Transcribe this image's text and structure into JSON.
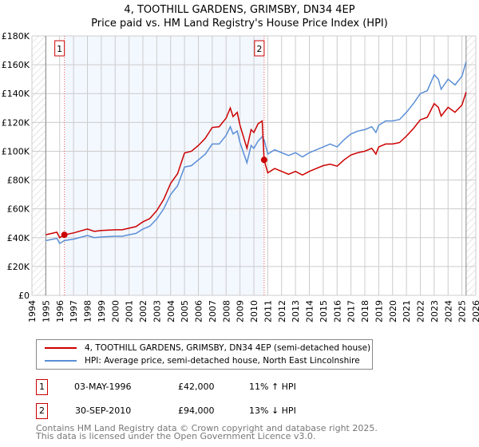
{
  "chart_data": {
    "type": "line",
    "title": "4, TOOTHILL GARDENS, GRIMSBY, DN34 4EP",
    "subtitle": "Price paid vs. HM Land Registry's House Price Index (HPI)",
    "xlim": [
      1994,
      2026
    ],
    "ylim": [
      0,
      180000
    ],
    "x_ticks": [
      "1994",
      "1995",
      "1996",
      "1997",
      "1998",
      "1999",
      "2000",
      "2001",
      "2002",
      "2003",
      "2004",
      "2005",
      "2006",
      "2007",
      "2008",
      "2009",
      "2010",
      "2011",
      "2012",
      "2013",
      "2014",
      "2015",
      "2016",
      "2017",
      "2018",
      "2019",
      "2020",
      "2021",
      "2022",
      "2023",
      "2024",
      "2025",
      "2026"
    ],
    "y_ticks": [
      {
        "v": 0,
        "label": "£0"
      },
      {
        "v": 20000,
        "label": "£20K"
      },
      {
        "v": 40000,
        "label": "£40K"
      },
      {
        "v": 60000,
        "label": "£60K"
      },
      {
        "v": 80000,
        "label": "£80K"
      },
      {
        "v": 100000,
        "label": "£100K"
      },
      {
        "v": 120000,
        "label": "£120K"
      },
      {
        "v": 140000,
        "label": "£140K"
      },
      {
        "v": 160000,
        "label": "£160K"
      },
      {
        "v": 180000,
        "label": "£180K"
      }
    ],
    "grid": true,
    "x": [
      1995,
      1995.8,
      1996,
      1996.34,
      1997,
      1998,
      1998.5,
      1999,
      2000,
      2000.5,
      2001,
      2001.5,
      2002,
      2002.5,
      2003,
      2003.5,
      2004,
      2004.5,
      2005,
      2005.5,
      2006,
      2006.5,
      2007,
      2007.5,
      2008,
      2008.3,
      2008.5,
      2008.8,
      2009,
      2009.5,
      2009.8,
      2010,
      2010.3,
      2010.6,
      2010.74,
      2011,
      2011.5,
      2012,
      2012.5,
      2013,
      2013.5,
      2014,
      2014.5,
      2015,
      2015.5,
      2016,
      2016.5,
      2017,
      2017.5,
      2018,
      2018.5,
      2018.8,
      2019,
      2019.5,
      2020,
      2020.5,
      2021,
      2021.5,
      2022,
      2022.5,
      2023,
      2023.3,
      2023.5,
      2024,
      2024.5,
      2025,
      2025.3
    ],
    "series": [
      {
        "name": "4, TOOTHILL GARDENS, GRIMSBY, DN34 4EP (semi-detached house)",
        "color": "#cc0000",
        "values": [
          42000,
          43800,
          40000,
          42000,
          43300,
          46000,
          44400,
          45000,
          45500,
          45500,
          46600,
          47700,
          51000,
          53300,
          58800,
          66600,
          77700,
          84400,
          98800,
          100000,
          104000,
          109000,
          116500,
          117000,
          123000,
          130000,
          124000,
          127000,
          118000,
          102000,
          115000,
          113000,
          119000,
          121000,
          94000,
          85000,
          88000,
          86000,
          84000,
          86000,
          83500,
          86000,
          88000,
          90000,
          91000,
          89600,
          94000,
          97400,
          99000,
          100000,
          102000,
          98000,
          103000,
          105000,
          105000,
          106000,
          110500,
          115700,
          121800,
          123500,
          133000,
          130500,
          124400,
          130500,
          127000,
          132000,
          141000
        ]
      },
      {
        "name": "HPI: Average price, semi-detached house, North East Lincolnshire",
        "color": "#5b8fd6",
        "values": [
          38000,
          39500,
          36000,
          38000,
          39000,
          41500,
          40000,
          40500,
          41000,
          41000,
          42000,
          43000,
          46000,
          48000,
          53000,
          60000,
          70000,
          76000,
          89000,
          90000,
          94000,
          98000,
          105000,
          105000,
          111000,
          117000,
          112000,
          114000,
          106000,
          92000,
          104000,
          102000,
          107000,
          110000,
          108000,
          98000,
          101000,
          99000,
          97000,
          99000,
          96000,
          99000,
          101000,
          103000,
          105000,
          103000,
          108000,
          112000,
          114000,
          115000,
          117000,
          113000,
          118000,
          121000,
          121000,
          122000,
          127000,
          133000,
          140000,
          142000,
          153000,
          150000,
          143000,
          150000,
          146000,
          152000,
          162000
        ]
      }
    ],
    "sales": [
      {
        "num": "1",
        "x": 1996.34,
        "price": 42000
      },
      {
        "num": "2",
        "x": 2010.74,
        "price": 94000
      }
    ],
    "data_end": 2025.3,
    "legend": "below"
  },
  "transactions": [
    {
      "num": "1",
      "date": "03-MAY-1996",
      "price": "£42,000",
      "hpi": "11% ↑ HPI"
    },
    {
      "num": "2",
      "date": "30-SEP-2010",
      "price": "£94,000",
      "hpi": "13% ↓ HPI"
    }
  ],
  "footer": [
    "Contains HM Land Registry data © Crown copyright and database right 2025.",
    "This data is licensed under the Open Government Licence v3.0."
  ]
}
